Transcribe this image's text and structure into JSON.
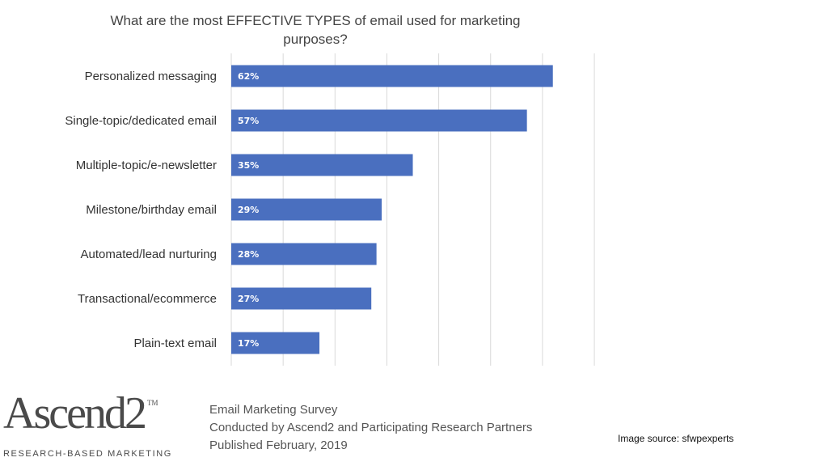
{
  "chart_data": {
    "type": "bar",
    "orientation": "horizontal",
    "title": "What are the most EFFECTIVE TYPES of email used for marketing purposes?",
    "categories": [
      "Personalized messaging",
      "Single-topic/dedicated email",
      "Multiple-topic/e-newsletter",
      "Milestone/birthday email",
      "Automated/lead nurturing",
      "Transactional/ecommerce",
      "Plain-text email"
    ],
    "values": [
      62,
      57,
      35,
      29,
      28,
      27,
      17
    ],
    "data_labels": [
      "62%",
      "57%",
      "35%",
      "29%",
      "28%",
      "27%",
      "17%"
    ],
    "xlim": [
      0,
      70
    ],
    "grid": true,
    "bar_color": "#4a6fbf"
  },
  "logo": {
    "wordmark": "Ascend2",
    "tm": "TM",
    "tagline": "RESEARCH-BASED MARKETING"
  },
  "survey": {
    "line1": "Email Marketing Survey",
    "line2": "Conducted by Ascend2 and Participating Research Partners",
    "line3": "Published February, 2019"
  },
  "source": "Image source: sfwpexperts"
}
